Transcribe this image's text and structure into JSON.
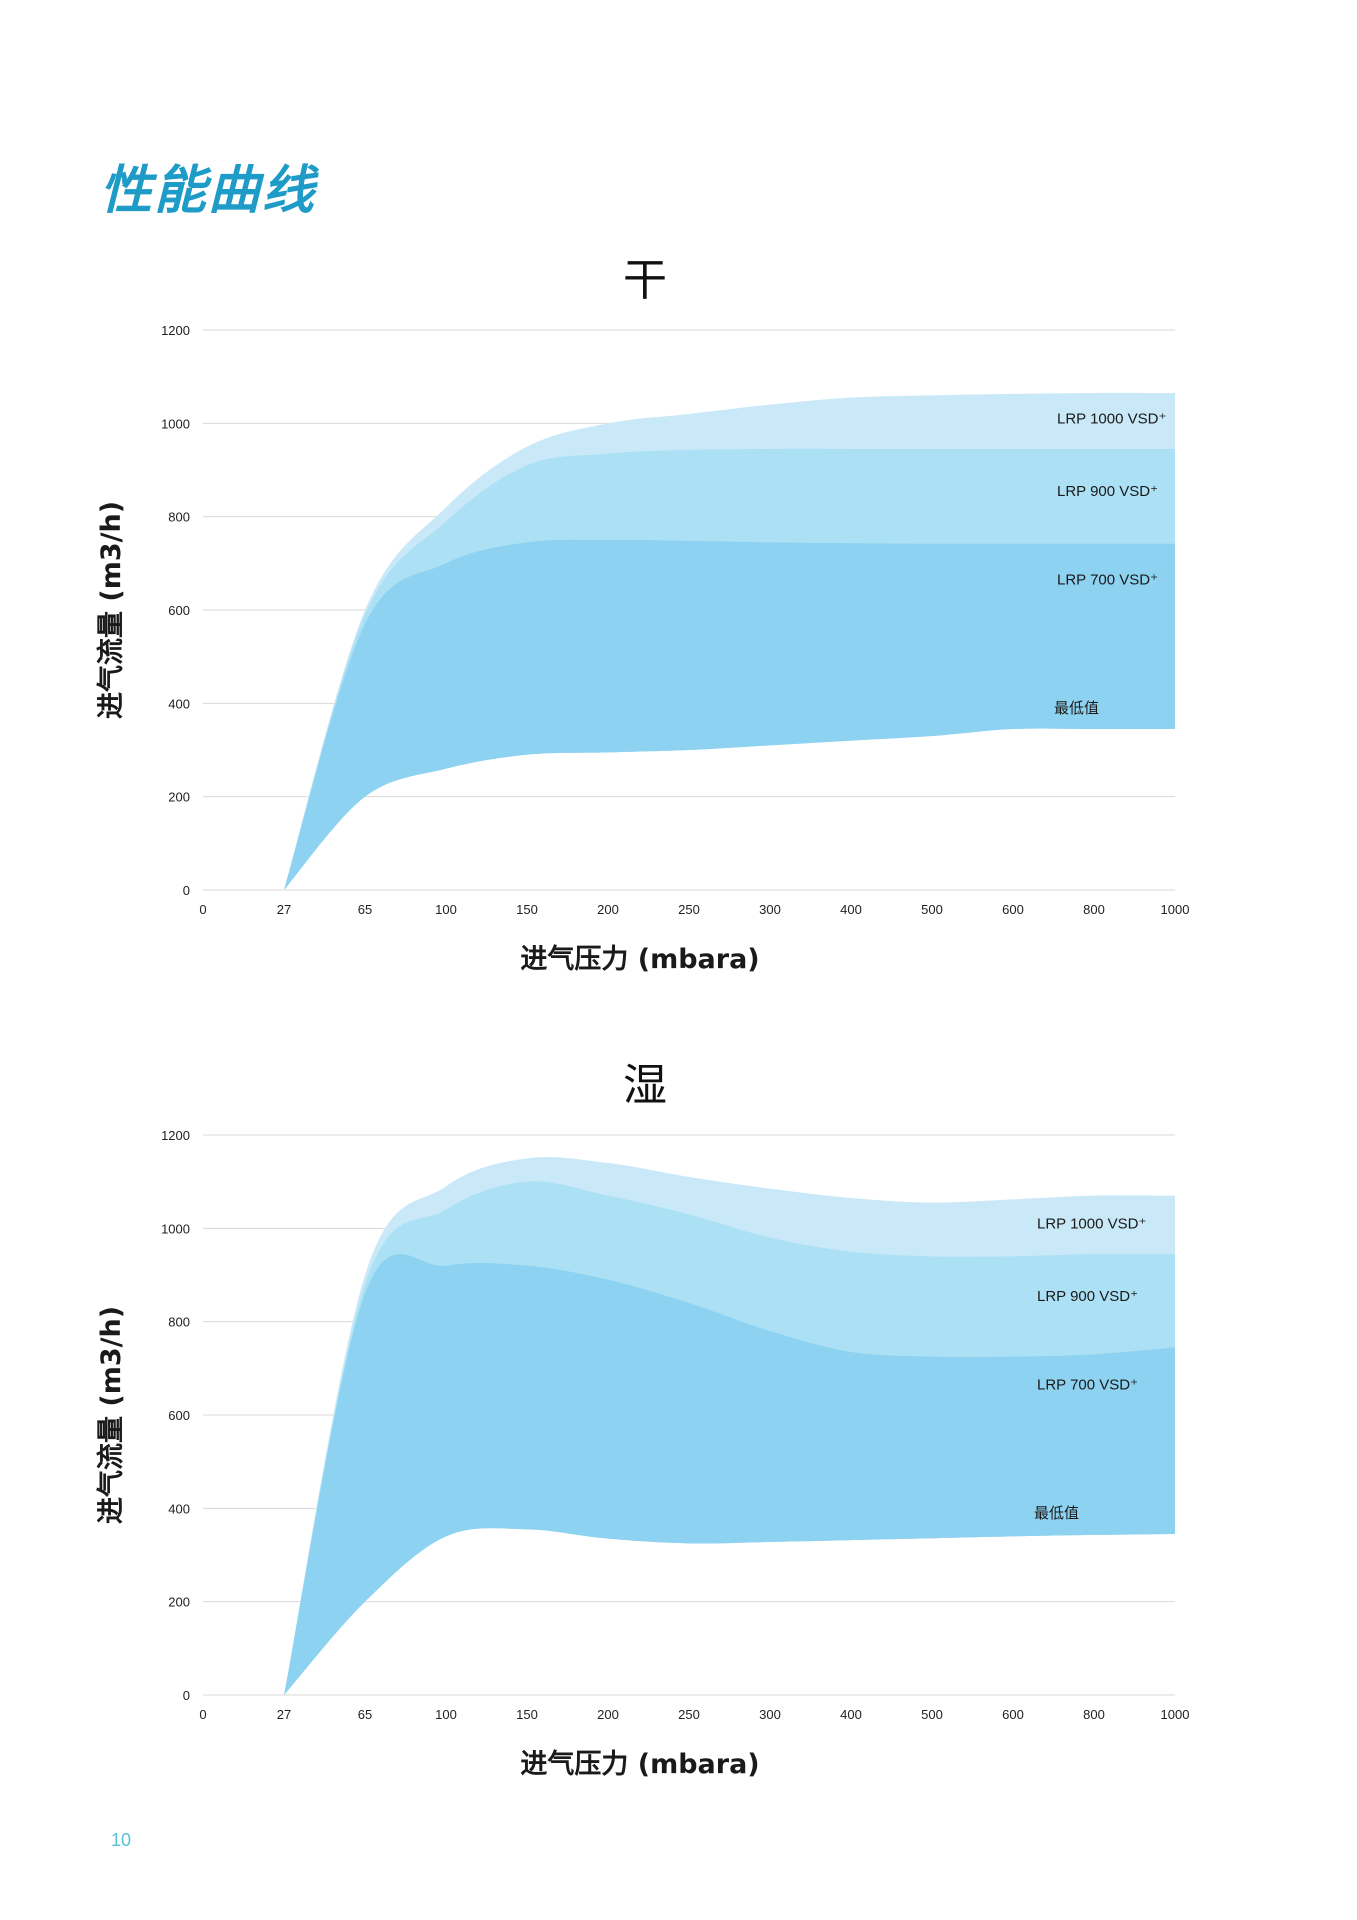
{
  "page": {
    "title": "性能曲线",
    "page_number": "10"
  },
  "colors": {
    "title": "#1e9bc6",
    "lrp1000": "#c9e9f8",
    "lrp900": "#ace0f4",
    "lrp700": "#8dd2f0",
    "grid": "#d9d9d9",
    "page_number": "#57c1d8"
  },
  "chart_data": [
    {
      "type": "area",
      "title": "干",
      "xlabel": "进气压力 (mbara)",
      "ylabel": "进气流量 (m3/h)",
      "x_ticks": [
        "0",
        "27",
        "65",
        "100",
        "150",
        "200",
        "250",
        "300",
        "400",
        "500",
        "600",
        "800",
        "1000"
      ],
      "y_ticks": [
        "0",
        "200",
        "400",
        "600",
        "800",
        "1000",
        "1200"
      ],
      "ylim": [
        0,
        1200
      ],
      "series": [
        {
          "name": "LRP 1000 VSD+",
          "label": "LRP 1000 VSD⁺",
          "x": [
            "27",
            "65",
            "100",
            "150",
            "200",
            "250",
            "300",
            "400",
            "500",
            "600",
            "800",
            "1000"
          ],
          "values": [
            0,
            600,
            820,
            950,
            1000,
            1020,
            1040,
            1055,
            1060,
            1063,
            1065,
            1065
          ]
        },
        {
          "name": "LRP 900 VSD+",
          "label": "LRP 900 VSD⁺",
          "x": [
            "27",
            "65",
            "100",
            "150",
            "200",
            "250",
            "300",
            "400",
            "500",
            "600",
            "800",
            "1000"
          ],
          "values": [
            0,
            590,
            790,
            910,
            935,
            943,
            945,
            945,
            945,
            945,
            945,
            945
          ]
        },
        {
          "name": "LRP 700 VSD+",
          "label": "LRP 700 VSD⁺",
          "x": [
            "27",
            "65",
            "100",
            "150",
            "200",
            "250",
            "300",
            "400",
            "500",
            "600",
            "800",
            "1000"
          ],
          "values": [
            0,
            570,
            700,
            745,
            750,
            748,
            745,
            743,
            742,
            742,
            742,
            742
          ]
        },
        {
          "name": "最低值",
          "label": "最低值",
          "x": [
            "27",
            "65",
            "100",
            "150",
            "200",
            "250",
            "300",
            "400",
            "500",
            "600",
            "800",
            "1000"
          ],
          "values": [
            0,
            200,
            260,
            290,
            295,
            300,
            310,
            320,
            330,
            345,
            345,
            345
          ]
        }
      ]
    },
    {
      "type": "area",
      "title": "湿",
      "xlabel": "进气压力 (mbara)",
      "ylabel": "进气流量 (m3/h)",
      "x_ticks": [
        "0",
        "27",
        "65",
        "100",
        "150",
        "200",
        "250",
        "300",
        "400",
        "500",
        "600",
        "800",
        "1000"
      ],
      "y_ticks": [
        "0",
        "200",
        "400",
        "600",
        "800",
        "1000",
        "1200"
      ],
      "ylim": [
        0,
        1200
      ],
      "series": [
        {
          "name": "LRP 1000 VSD+",
          "label": "LRP 1000 VSD⁺",
          "x": [
            "27",
            "65",
            "100",
            "150",
            "200",
            "250",
            "300",
            "400",
            "500",
            "600",
            "800",
            "1000"
          ],
          "values": [
            0,
            900,
            1090,
            1150,
            1140,
            1110,
            1085,
            1065,
            1055,
            1062,
            1070,
            1070
          ]
        },
        {
          "name": "LRP 900 VSD+",
          "label": "LRP 900 VSD⁺",
          "x": [
            "27",
            "65",
            "100",
            "150",
            "200",
            "250",
            "300",
            "400",
            "500",
            "600",
            "800",
            "1000"
          ],
          "values": [
            0,
            880,
            1040,
            1100,
            1070,
            1030,
            980,
            950,
            940,
            940,
            945,
            945
          ]
        },
        {
          "name": "LRP 700 VSD+",
          "label": "LRP 700 VSD⁺",
          "x": [
            "27",
            "65",
            "100",
            "150",
            "200",
            "250",
            "300",
            "400",
            "500",
            "600",
            "800",
            "1000"
          ],
          "values": [
            0,
            860,
            920,
            920,
            890,
            840,
            780,
            735,
            725,
            725,
            730,
            745
          ]
        },
        {
          "name": "最低值",
          "label": "最低值",
          "x": [
            "27",
            "65",
            "100",
            "150",
            "200",
            "250",
            "300",
            "400",
            "500",
            "600",
            "800",
            "1000"
          ],
          "values": [
            0,
            200,
            340,
            355,
            335,
            325,
            328,
            332,
            336,
            340,
            343,
            345
          ]
        }
      ]
    }
  ]
}
